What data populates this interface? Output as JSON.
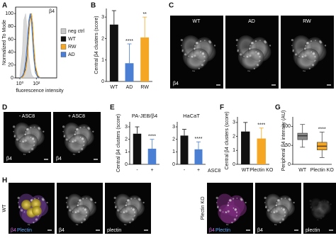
{
  "panel_labels": [
    "A",
    "B",
    "C",
    "D",
    "E",
    "F",
    "G",
    "H"
  ],
  "chart_data": [
    {
      "type": "line",
      "x_label": "fluorescence intensity",
      "y_label": "Normalized To Mode",
      "stain": "β4",
      "log_x": true,
      "xlim": [
        0.3,
        30000
      ],
      "ylim": [
        0,
        110
      ],
      "xticks": [
        {
          "value": 1,
          "label": "10⁰"
        },
        {
          "value": 100,
          "label": "10²"
        }
      ],
      "yticks": [
        0,
        20,
        40,
        60,
        80,
        100
      ],
      "x": [
        1,
        2,
        3,
        5,
        8,
        12,
        18,
        25,
        35,
        50,
        80,
        150,
        300
      ],
      "series": [
        {
          "name": "neg ctrl",
          "color": "#c8c8c8",
          "values": [
            5,
            40,
            90,
            100,
            70,
            35,
            15,
            6,
            2,
            1,
            0,
            0,
            0
          ]
        },
        {
          "name": "WT",
          "color": "#111111",
          "values": [
            0,
            2,
            5,
            15,
            35,
            70,
            95,
            100,
            80,
            45,
            15,
            3,
            0
          ]
        },
        {
          "name": "RW",
          "color": "#f5a623",
          "values": [
            0,
            1,
            4,
            12,
            30,
            65,
            92,
            100,
            85,
            50,
            18,
            4,
            0
          ]
        },
        {
          "name": "AD",
          "color": "#4a7fd4",
          "values": [
            0,
            3,
            8,
            25,
            55,
            88,
            100,
            90,
            60,
            30,
            8,
            1,
            0
          ]
        }
      ]
    },
    {
      "type": "bar",
      "y_label": "Central β4 clusters (score)",
      "categories": [
        "WT",
        "AD",
        "RW"
      ],
      "values": [
        2.65,
        0.85,
        2.05
      ],
      "errors": [
        0.65,
        0.9,
        0.95
      ],
      "colors": [
        "#111111",
        "#4a7fd4",
        "#f5a623"
      ],
      "significance": [
        null,
        "****",
        "**"
      ],
      "ylim": [
        0,
        3.4
      ],
      "yticks": [
        0,
        1,
        2,
        3
      ]
    },
    {
      "type": "bar",
      "title": "PA-JEB/β4",
      "y_label": "Central β4 clusters (score)",
      "categories": [
        "-",
        "+"
      ],
      "values": [
        2.45,
        1.25
      ],
      "errors": [
        0.55,
        0.75
      ],
      "colors": [
        "#111111",
        "#4a7fd4"
      ],
      "significance": [
        null,
        "****"
      ],
      "ylim": [
        0,
        3.4
      ],
      "yticks": [
        0,
        1,
        2,
        3
      ]
    },
    {
      "type": "bar",
      "title": "HaCaT",
      "x_label": "ASC8",
      "categories": [
        "-",
        "+"
      ],
      "values": [
        2.3,
        1.2
      ],
      "errors": [
        0.5,
        0.6
      ],
      "colors": [
        "#111111",
        "#4a7fd4"
      ],
      "significance": [
        null,
        "****"
      ],
      "ylim": [
        0,
        3.4
      ],
      "yticks": [
        0,
        1,
        2,
        3
      ]
    },
    {
      "type": "bar",
      "y_label": "Central β4 clusters (score)",
      "categories": [
        "WT",
        "Plectin KO"
      ],
      "values": [
        2.35,
        1.85
      ],
      "errors": [
        0.65,
        0.75
      ],
      "colors": [
        "#111111",
        "#f5a623"
      ],
      "significance": [
        null,
        "****"
      ],
      "ylim": [
        0,
        3.4
      ],
      "yticks": [
        0,
        1,
        2,
        3
      ]
    },
    {
      "type": "box",
      "y_label": "Peripheral β4 intensity (AU)",
      "categories": [
        "WT",
        "Plectin KO"
      ],
      "colors": [
        "#888888",
        "#f5a623"
      ],
      "boxes": [
        {
          "whislo": 45,
          "q1": 65,
          "med": 75,
          "q3": 82,
          "whishi": 105
        },
        {
          "whislo": 18,
          "q1": 38,
          "med": 48,
          "q3": 58,
          "whishi": 85
        }
      ],
      "significance": [
        null,
        "****"
      ],
      "ylim": [
        0,
        125
      ],
      "yticks": [
        0,
        50,
        100
      ]
    }
  ],
  "images": {
    "C": {
      "labels": [
        "WT",
        "AD",
        "RW"
      ],
      "stain": "β4"
    },
    "D": {
      "labels": [
        "- ASC8",
        "+ ASC8"
      ],
      "stains": [
        "β4",
        "β4"
      ]
    },
    "H": {
      "rows": [
        {
          "label": "WT",
          "merge": [
            "β4",
            "Plectin"
          ],
          "channels": [
            "β4",
            "plectin"
          ]
        },
        {
          "label": "Plectin KO",
          "merge": [
            "β4",
            "Plectin"
          ],
          "channels": [
            "β4",
            "plectin"
          ]
        }
      ]
    }
  }
}
